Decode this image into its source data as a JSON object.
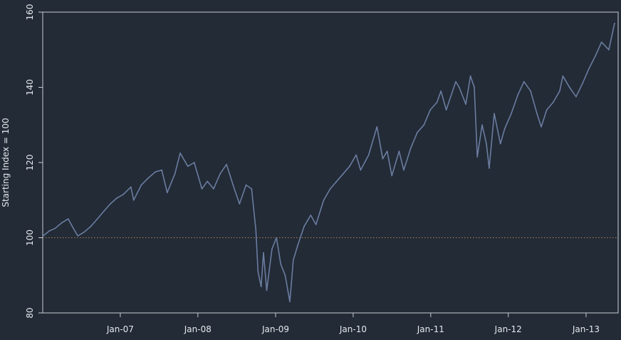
{
  "chart_data": {
    "type": "line",
    "title": "",
    "xlabel": "",
    "ylabel": "Starting Index = 100",
    "xlim": [
      "2006-01-01",
      "2013-06-01"
    ],
    "ylim": [
      80,
      160
    ],
    "y_ticks": [
      80,
      100,
      120,
      140,
      160
    ],
    "x_ticks": [
      {
        "date": "2007-01-01",
        "label": "Jan-07"
      },
      {
        "date": "2008-01-01",
        "label": "Jan-08"
      },
      {
        "date": "2009-01-01",
        "label": "Jan-09"
      },
      {
        "date": "2010-01-01",
        "label": "Jan-10"
      },
      {
        "date": "2011-01-01",
        "label": "Jan-11"
      },
      {
        "date": "2012-01-01",
        "label": "Jan-12"
      },
      {
        "date": "2013-01-01",
        "label": "Jan-13"
      }
    ],
    "reference_line": {
      "y": 100,
      "style": "dotted",
      "color": "#b08050"
    },
    "grid": false,
    "series": [
      {
        "color": "#6b7ca0",
        "points": [
          [
            "2006-01-03",
            100.5
          ],
          [
            "2006-02-01",
            101.8
          ],
          [
            "2006-03-01",
            102.5
          ],
          [
            "2006-04-01",
            104.0
          ],
          [
            "2006-05-01",
            105.0
          ],
          [
            "2006-05-20",
            103.0
          ],
          [
            "2006-06-15",
            100.5
          ],
          [
            "2006-07-15",
            101.5
          ],
          [
            "2006-08-15",
            103.0
          ],
          [
            "2006-09-15",
            105.0
          ],
          [
            "2006-10-15",
            107.0
          ],
          [
            "2006-11-15",
            109.0
          ],
          [
            "2006-12-15",
            110.5
          ],
          [
            "2007-01-15",
            111.5
          ],
          [
            "2007-02-20",
            113.5
          ],
          [
            "2007-03-05",
            110.0
          ],
          [
            "2007-04-10",
            114.0
          ],
          [
            "2007-05-15",
            116.0
          ],
          [
            "2007-06-15",
            117.5
          ],
          [
            "2007-07-15",
            118.0
          ],
          [
            "2007-08-10",
            112.0
          ],
          [
            "2007-09-15",
            117.0
          ],
          [
            "2007-10-10",
            122.5
          ],
          [
            "2007-11-15",
            119.0
          ],
          [
            "2007-12-15",
            120.0
          ],
          [
            "2008-01-20",
            113.0
          ],
          [
            "2008-02-15",
            115.0
          ],
          [
            "2008-03-15",
            113.0
          ],
          [
            "2008-04-15",
            117.0
          ],
          [
            "2008-05-15",
            119.5
          ],
          [
            "2008-06-15",
            114.0
          ],
          [
            "2008-07-15",
            109.0
          ],
          [
            "2008-08-15",
            114.0
          ],
          [
            "2008-09-10",
            113.0
          ],
          [
            "2008-09-30",
            102.0
          ],
          [
            "2008-10-10",
            91.0
          ],
          [
            "2008-10-25",
            87.0
          ],
          [
            "2008-11-05",
            96.0
          ],
          [
            "2008-11-20",
            86.0
          ],
          [
            "2008-12-15",
            97.0
          ],
          [
            "2009-01-05",
            100.0
          ],
          [
            "2009-01-25",
            93.0
          ],
          [
            "2009-02-15",
            90.0
          ],
          [
            "2009-03-09",
            83.0
          ],
          [
            "2009-03-25",
            94.0
          ],
          [
            "2009-04-15",
            98.0
          ],
          [
            "2009-05-15",
            103.0
          ],
          [
            "2009-06-15",
            106.0
          ],
          [
            "2009-07-10",
            103.5
          ],
          [
            "2009-08-15",
            110.0
          ],
          [
            "2009-09-15",
            113.0
          ],
          [
            "2009-10-15",
            115.0
          ],
          [
            "2009-11-15",
            117.0
          ],
          [
            "2009-12-15",
            119.0
          ],
          [
            "2010-01-15",
            122.0
          ],
          [
            "2010-02-05",
            118.0
          ],
          [
            "2010-03-15",
            122.0
          ],
          [
            "2010-04-23",
            129.5
          ],
          [
            "2010-05-20",
            121.0
          ],
          [
            "2010-06-10",
            123.0
          ],
          [
            "2010-07-02",
            116.5
          ],
          [
            "2010-08-05",
            123.0
          ],
          [
            "2010-08-27",
            118.0
          ],
          [
            "2010-09-30",
            124.0
          ],
          [
            "2010-10-30",
            128.0
          ],
          [
            "2010-11-30",
            130.0
          ],
          [
            "2010-12-30",
            134.0
          ],
          [
            "2011-01-30",
            136.0
          ],
          [
            "2011-02-18",
            139.0
          ],
          [
            "2011-03-15",
            134.0
          ],
          [
            "2011-04-29",
            141.5
          ],
          [
            "2011-05-15",
            140.0
          ],
          [
            "2011-06-15",
            135.5
          ],
          [
            "2011-07-07",
            143.0
          ],
          [
            "2011-07-25",
            140.0
          ],
          [
            "2011-08-08",
            121.5
          ],
          [
            "2011-08-31",
            130.0
          ],
          [
            "2011-09-20",
            125.0
          ],
          [
            "2011-10-03",
            118.5
          ],
          [
            "2011-10-27",
            133.0
          ],
          [
            "2011-11-25",
            125.0
          ],
          [
            "2011-12-15",
            129.0
          ],
          [
            "2012-01-15",
            133.0
          ],
          [
            "2012-02-15",
            138.0
          ],
          [
            "2012-03-15",
            141.5
          ],
          [
            "2012-04-15",
            139.0
          ],
          [
            "2012-05-15",
            133.0
          ],
          [
            "2012-06-04",
            129.5
          ],
          [
            "2012-06-30",
            134.0
          ],
          [
            "2012-07-30",
            136.0
          ],
          [
            "2012-08-30",
            139.0
          ],
          [
            "2012-09-14",
            143.0
          ],
          [
            "2012-10-15",
            140.0
          ],
          [
            "2012-11-15",
            137.5
          ],
          [
            "2012-12-15",
            141.0
          ],
          [
            "2013-01-15",
            145.0
          ],
          [
            "2013-02-15",
            148.5
          ],
          [
            "2013-03-15",
            152.0
          ],
          [
            "2013-04-18",
            150.0
          ],
          [
            "2013-05-15",
            157.0
          ]
        ]
      }
    ]
  }
}
